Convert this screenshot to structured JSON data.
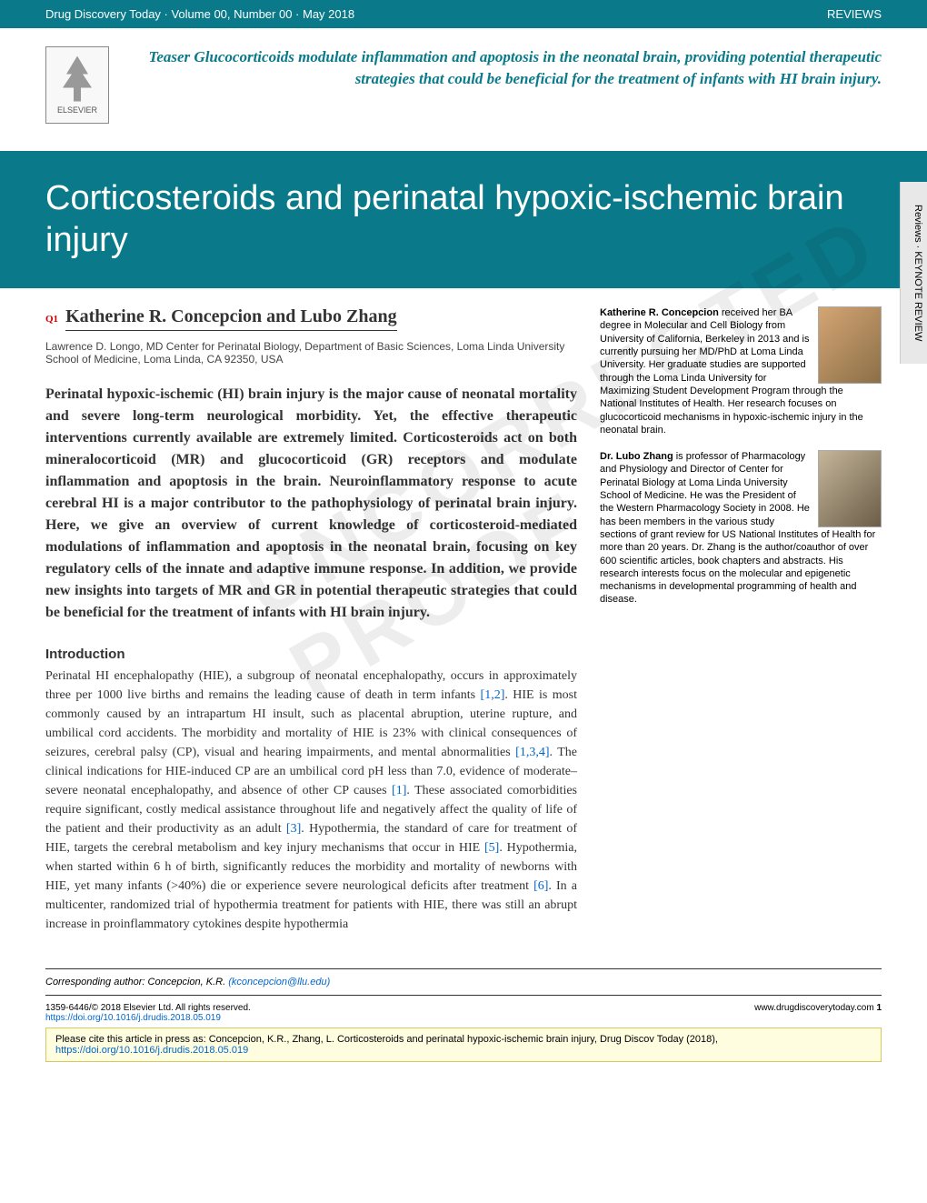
{
  "header": {
    "journal_info": "Drug Discovery Today · Volume 00, Number 00 · May 2018",
    "section": "REVIEWS"
  },
  "logo": {
    "publisher": "ELSEVIER"
  },
  "teaser": "Teaser Glucocorticoids modulate inflammation and apoptosis in the neonatal brain, providing potential therapeutic strategies that could be beneficial for the treatment of infants with HI brain injury.",
  "title": "Corticosteroids and perinatal hypoxic-ischemic brain injury",
  "side_tab": "Reviews · KEYNOTE REVIEW",
  "query_marker": "Q1",
  "authors": "Katherine R. Concepcion and Lubo Zhang",
  "affiliation": "Lawrence D. Longo, MD Center for Perinatal Biology, Department of Basic Sciences, Loma Linda University School of Medicine, Loma Linda, CA 92350, USA",
  "abstract": "Perinatal hypoxic-ischemic (HI) brain injury is the major cause of neonatal mortality and severe long-term neurological morbidity. Yet, the effective therapeutic interventions currently available are extremely limited. Corticosteroids act on both mineralocorticoid (MR) and glucocorticoid (GR) receptors and modulate inflammation and apoptosis in the brain. Neuroinflammatory response to acute cerebral HI is a major contributor to the pathophysiology of perinatal brain injury. Here, we give an overview of current knowledge of corticosteroid-mediated modulations of inflammation and apoptosis in the neonatal brain, focusing on key regulatory cells of the innate and adaptive immune response. In addition, we provide new insights into targets of MR and GR in potential therapeutic strategies that could be beneficial for the treatment of infants with HI brain injury.",
  "intro_heading": "Introduction",
  "intro_body_1": "Perinatal HI encephalopathy (HIE), a subgroup of neonatal encephalopathy, occurs in approximately three per 1000 live births and remains the leading cause of death in term infants ",
  "ref_1": "[1,2]",
  "intro_body_2": ". HIE is most commonly caused by an intrapartum HI insult, such as placental abruption, uterine rupture, and umbilical cord accidents. The morbidity and mortality of HIE is 23% with clinical consequences of seizures, cerebral palsy (CP), visual and hearing impairments, and mental abnormalities ",
  "ref_2": "[1,3,4]",
  "intro_body_3": ". The clinical indications for HIE-induced CP are an umbilical cord pH less than 7.0, evidence of moderate–severe neonatal encephalopathy, and absence of other CP causes ",
  "ref_3": "[1]",
  "intro_body_4": ". These associated comorbidities require significant, costly medical assistance throughout life and negatively affect the quality of life of the patient and their productivity as an adult ",
  "ref_4": "[3]",
  "intro_body_5": ". Hypothermia, the standard of care for treatment of HIE, targets the cerebral metabolism and key injury mechanisms that occur in HIE ",
  "ref_5": "[5]",
  "intro_body_6": ". Hypothermia, when started within 6 h of birth, significantly reduces the morbidity and mortality of newborns with HIE, yet many infants (>40%) die or experience severe neurological deficits after treatment ",
  "ref_6": "[6]",
  "intro_body_7": ". In a multicenter, randomized trial of hypothermia treatment for patients with HIE, there was still an abrupt increase in proinflammatory cytokines despite hypothermia",
  "bio1": {
    "name": "Katherine R. Concepcion",
    "text": " received her BA degree in Molecular and Cell Biology from University of California, Berkeley in 2013 and is currently pursuing her MD/PhD at Loma Linda University. Her graduate studies are supported through the Loma Linda University for Maximizing Student Development Program through the National Institutes of Health. Her research focuses on glucocorticoid mechanisms in hypoxic-ischemic injury in the neonatal brain."
  },
  "bio2": {
    "name": "Dr. Lubo Zhang",
    "text": " is professor of Pharmacology and Physiology and Director of Center for Perinatal Biology at Loma Linda University School of Medicine. He was the President of the Western Pharmacology Society in 2008. He has been members in the various study sections of grant review for US National Institutes of Health for more than 20 years. Dr. Zhang is the author/coauthor of over 600 scientific articles, book chapters and abstracts. His research interests focus on the molecular and epigenetic mechanisms in developmental programming of health and disease."
  },
  "watermark": "UNCORRECTED PROOF",
  "footer": {
    "corresponding_label": "Corresponding author:",
    "corresponding_name": " Concepcion, K.R. ",
    "email": "(kconcepcion@llu.edu)",
    "issn": "1359-6446/© 2018 Elsevier Ltd. All rights reserved.",
    "doi": "https://doi.org/10.1016/j.drudis.2018.05.019",
    "site": "www.drugdiscoverytoday.com",
    "page_num": "1",
    "cite_text": "Please cite this article in press as: Concepcion, K.R., Zhang, L. Corticosteroids and perinatal hypoxic-ischemic brain injury, Drug Discov Today (2018), ",
    "cite_doi": "https://doi.org/10.1016/j.drudis.2018.05.019"
  },
  "colors": {
    "teal": "#0a7a8a",
    "link": "#0066cc",
    "citebox_bg": "#fffde0",
    "citebox_border": "#d4c860"
  }
}
